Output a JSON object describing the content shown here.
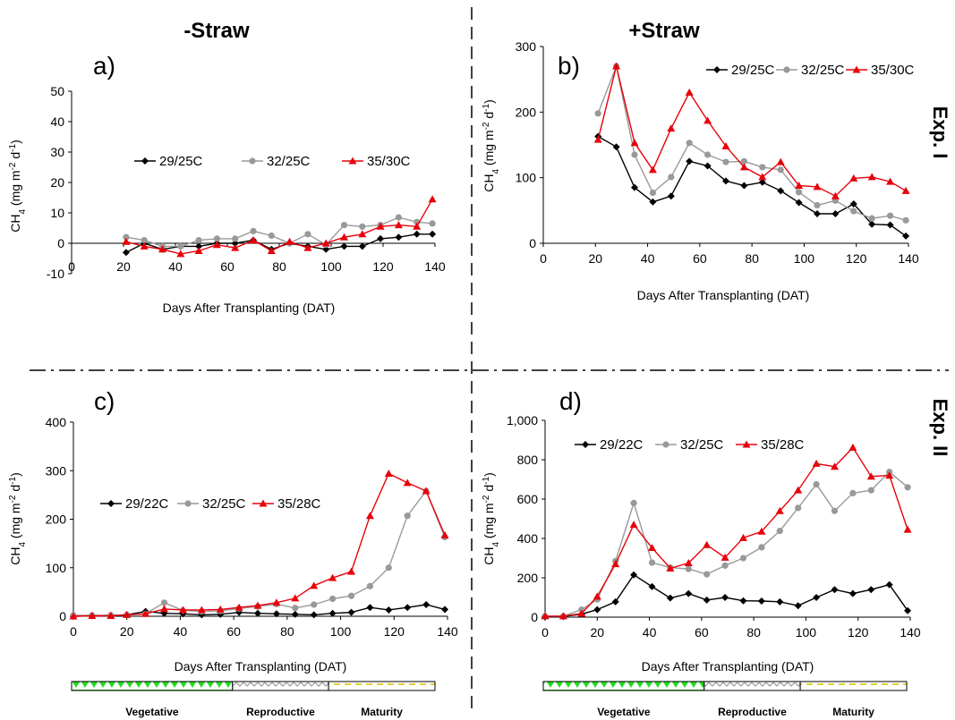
{
  "column_titles": {
    "left": "-Straw",
    "right": "+Straw"
  },
  "experiment_labels": {
    "top": "Exp. I",
    "bottom": "Exp. II"
  },
  "growth_stages": [
    "Vegetative",
    "Reproductive",
    "Maturity"
  ],
  "stage_boundaries_dat": [
    0,
    62,
    99,
    140
  ],
  "colors": {
    "low": "#000000",
    "mid": "#999999",
    "high": "#e8000b",
    "vegetative": "#22dd22",
    "reproductive": "#b0b0b0",
    "maturity": "#f0e040"
  },
  "chart_data": [
    {
      "id": "a",
      "panel_label": "a)",
      "type": "line",
      "xlabel": "Days After Transplanting (DAT)",
      "ylabel": "CH4 (mg m-2 d-1)",
      "xlim": [
        0,
        140
      ],
      "ylim": [
        -10,
        50
      ],
      "xticks": [
        "0",
        "20",
        "40",
        "60",
        "80",
        "100",
        "120",
        "140"
      ],
      "yticks": [
        "-10",
        "0",
        "10",
        "20",
        "30",
        "40",
        "50"
      ],
      "legend_position": "middle",
      "series": [
        {
          "name": "29/25C",
          "marker": "diamond",
          "x": [
            21,
            28,
            35,
            42,
            49,
            56,
            63,
            70,
            77,
            84,
            91,
            98,
            105,
            112,
            119,
            126,
            133,
            139
          ],
          "y": [
            -3,
            0,
            -2,
            -1,
            -1,
            0,
            0,
            1,
            -2,
            0,
            -1,
            -2,
            -1,
            -1,
            1.5,
            2,
            3,
            3
          ]
        },
        {
          "name": "32/25C",
          "marker": "circle",
          "x": [
            21,
            28,
            35,
            42,
            49,
            56,
            63,
            70,
            77,
            84,
            91,
            98,
            105,
            112,
            119,
            126,
            133,
            139
          ],
          "y": [
            2,
            1,
            -1,
            -1,
            1,
            1.5,
            1.5,
            4,
            2.5,
            0,
            3,
            -0.5,
            6,
            5.5,
            6,
            8.5,
            7,
            6.5
          ]
        },
        {
          "name": "35/30C",
          "marker": "triangle",
          "x": [
            21,
            28,
            35,
            42,
            49,
            56,
            63,
            70,
            77,
            84,
            91,
            98,
            105,
            112,
            119,
            126,
            133,
            139
          ],
          "y": [
            0.5,
            -1,
            -2,
            -3.5,
            -2.5,
            -0.5,
            -1.5,
            1,
            -2.5,
            0.5,
            -1.5,
            0,
            2,
            3,
            5.5,
            6,
            5.5,
            14.5
          ]
        }
      ]
    },
    {
      "id": "b",
      "panel_label": "b)",
      "type": "line",
      "xlabel": "Days After Transplanting (DAT)",
      "ylabel": "CH4 (mg m-2 d-1)",
      "xlim": [
        0,
        140
      ],
      "ylim": [
        0,
        300
      ],
      "xticks": [
        "0",
        "20",
        "40",
        "60",
        "80",
        "100",
        "120",
        "140"
      ],
      "yticks": [
        "0",
        "100",
        "200",
        "300"
      ],
      "legend_position": "top",
      "series": [
        {
          "name": "29/25C",
          "marker": "diamond",
          "x": [
            21,
            28,
            35,
            42,
            49,
            56,
            63,
            70,
            77,
            84,
            91,
            98,
            105,
            112,
            119,
            126,
            133,
            139
          ],
          "y": [
            163,
            147,
            85,
            63,
            72,
            125,
            118,
            95,
            88,
            93,
            80,
            62,
            45,
            45,
            60,
            29,
            28,
            11
          ]
        },
        {
          "name": "32/25C",
          "marker": "circle",
          "x": [
            21,
            28,
            35,
            42,
            49,
            56,
            63,
            70,
            77,
            84,
            91,
            98,
            105,
            112,
            119,
            126,
            133,
            139
          ],
          "y": [
            198,
            270,
            135,
            77,
            101,
            153,
            135,
            124,
            125,
            116,
            112,
            78,
            58,
            65,
            49,
            38,
            42,
            35
          ]
        },
        {
          "name": "35/30C",
          "marker": "triangle",
          "x": [
            21,
            28,
            35,
            42,
            49,
            56,
            63,
            70,
            77,
            84,
            91,
            98,
            105,
            112,
            119,
            126,
            133,
            139
          ],
          "y": [
            158,
            270,
            153,
            112,
            175,
            230,
            187,
            148,
            116,
            101,
            124,
            88,
            86,
            72,
            99,
            101,
            94,
            80
          ]
        }
      ]
    },
    {
      "id": "c",
      "panel_label": "c)",
      "type": "line",
      "xlabel": "Days After Transplanting (DAT)",
      "ylabel": "CH4 (mg m-2 d-1)",
      "xlim": [
        0,
        140
      ],
      "ylim": [
        0,
        400
      ],
      "xticks": [
        "0",
        "20",
        "40",
        "60",
        "80",
        "100",
        "120",
        "140"
      ],
      "yticks": [
        "0",
        "100",
        "200",
        "300",
        "400"
      ],
      "legend_position": "middle",
      "series": [
        {
          "name": "29/22C",
          "marker": "diamond",
          "x": [
            0,
            7,
            14,
            20,
            27,
            34,
            41,
            48,
            55,
            62,
            69,
            76,
            83,
            90,
            97,
            104,
            111,
            118,
            125,
            132,
            139
          ],
          "y": [
            0,
            1,
            2,
            3,
            10,
            6,
            5,
            3,
            4,
            8,
            6,
            5,
            4,
            3,
            6,
            8,
            18,
            13,
            18,
            24,
            14
          ]
        },
        {
          "name": "32/25C",
          "marker": "circle",
          "x": [
            0,
            7,
            14,
            20,
            27,
            34,
            41,
            48,
            55,
            62,
            69,
            76,
            83,
            90,
            97,
            104,
            111,
            118,
            125,
            132,
            139
          ],
          "y": [
            2,
            2,
            2,
            3,
            5,
            28,
            12,
            10,
            11,
            16,
            20,
            25,
            17,
            24,
            36,
            42,
            62,
            100,
            207,
            258,
            163
          ]
        },
        {
          "name": "35/28C",
          "marker": "triangle",
          "x": [
            0,
            7,
            14,
            20,
            27,
            34,
            41,
            48,
            55,
            62,
            69,
            76,
            83,
            90,
            97,
            104,
            111,
            118,
            125,
            132,
            139
          ],
          "y": [
            0,
            1,
            1,
            3,
            5,
            15,
            13,
            13,
            14,
            18,
            22,
            28,
            37,
            63,
            79,
            92,
            207,
            294,
            275,
            258,
            167
          ]
        }
      ]
    },
    {
      "id": "d",
      "panel_label": "d)",
      "type": "line",
      "xlabel": "Days After Transplanting (DAT)",
      "ylabel": "CH4 (mg m-2 d-1)",
      "xlim": [
        0,
        140
      ],
      "ylim": [
        0,
        1000
      ],
      "xticks": [
        "0",
        "20",
        "40",
        "60",
        "80",
        "100",
        "120",
        "140"
      ],
      "yticks": [
        "0",
        "200",
        "400",
        "600",
        "800",
        "1,000"
      ],
      "legend_position": "top",
      "series": [
        {
          "name": "29/22C",
          "marker": "diamond",
          "x": [
            0,
            7,
            14,
            20,
            27,
            34,
            41,
            48,
            55,
            62,
            69,
            76,
            83,
            90,
            97,
            104,
            111,
            118,
            125,
            132,
            139
          ],
          "y": [
            2,
            3,
            15,
            38,
            78,
            215,
            155,
            97,
            120,
            87,
            100,
            83,
            82,
            78,
            58,
            100,
            140,
            120,
            140,
            165,
            33
          ]
        },
        {
          "name": "32/25C",
          "marker": "circle",
          "x": [
            0,
            7,
            14,
            20,
            27,
            34,
            41,
            48,
            55,
            62,
            69,
            76,
            83,
            90,
            97,
            104,
            111,
            118,
            125,
            132,
            139
          ],
          "y": [
            5,
            5,
            38,
            90,
            285,
            580,
            277,
            252,
            245,
            218,
            262,
            300,
            355,
            438,
            555,
            675,
            540,
            630,
            645,
            738,
            660
          ]
        },
        {
          "name": "35/28C",
          "marker": "triangle",
          "x": [
            0,
            7,
            14,
            20,
            27,
            34,
            41,
            48,
            55,
            62,
            69,
            76,
            83,
            90,
            97,
            104,
            111,
            118,
            125,
            132,
            139
          ],
          "y": [
            5,
            5,
            18,
            105,
            270,
            470,
            352,
            248,
            275,
            367,
            303,
            403,
            435,
            540,
            645,
            780,
            765,
            862,
            715,
            720,
            445
          ]
        }
      ]
    }
  ]
}
